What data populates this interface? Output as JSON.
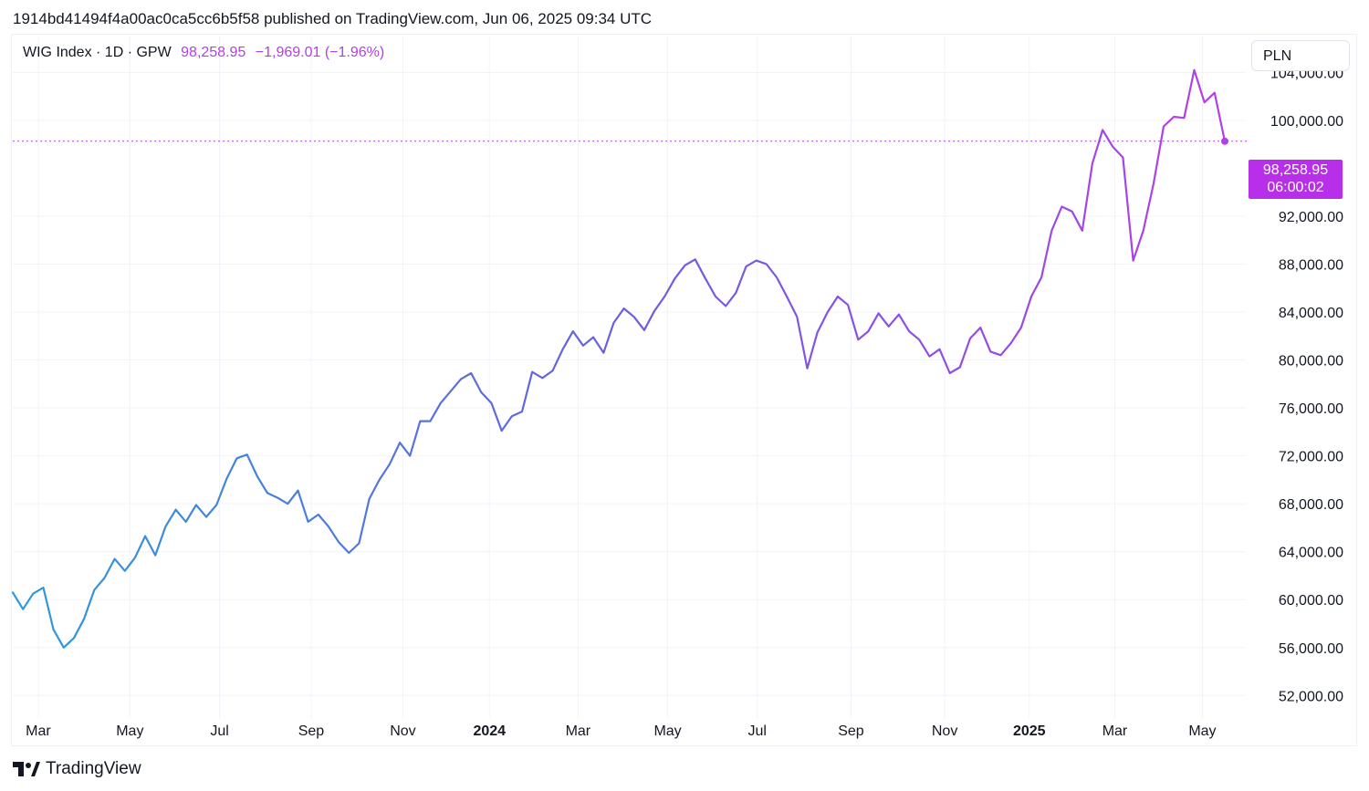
{
  "header": {
    "published_text": "1914bd41494f4a00ac0ca5cc6b5f58 published on TradingView.com, Jun 06, 2025 09:34 UTC"
  },
  "legend": {
    "symbol": "WIG Index · 1D · GPW",
    "last": "98,258.95",
    "change": "−1,969.01 (−1.96%)"
  },
  "currency_button": "PLN",
  "price_tag": {
    "price": "98,258.95",
    "countdown": "06:00:02",
    "color": "#b72fe8"
  },
  "footer": {
    "brand": "TradingView",
    "logo_icon": "tradingview-logo-icon"
  },
  "colors": {
    "line_start": "#2f9ad8",
    "line_mid": "#6a5fe0",
    "line_end": "#b43ee8",
    "grid": "#f0f3fa"
  },
  "chart_data": {
    "type": "line",
    "title": "",
    "xlabel": "",
    "ylabel": "",
    "ylim": [
      50500,
      107000
    ],
    "xlim": [
      0,
      119
    ],
    "x_ticks": [
      {
        "label": "Mar",
        "pos": 2.5,
        "bold": false
      },
      {
        "label": "May",
        "pos": 11.5,
        "bold": false
      },
      {
        "label": "Jul",
        "pos": 20.3,
        "bold": false
      },
      {
        "label": "Sep",
        "pos": 29.3,
        "bold": false
      },
      {
        "label": "Nov",
        "pos": 38.3,
        "bold": false
      },
      {
        "label": "2024",
        "pos": 46.8,
        "bold": true
      },
      {
        "label": "Mar",
        "pos": 55.5,
        "bold": false
      },
      {
        "label": "May",
        "pos": 64.3,
        "bold": false
      },
      {
        "label": "Jul",
        "pos": 73.1,
        "bold": false
      },
      {
        "label": "Sep",
        "pos": 82.3,
        "bold": false
      },
      {
        "label": "Nov",
        "pos": 91.5,
        "bold": false
      },
      {
        "label": "2025",
        "pos": 99.8,
        "bold": true
      },
      {
        "label": "Mar",
        "pos": 108.2,
        "bold": false
      },
      {
        "label": "May",
        "pos": 116.8,
        "bold": false
      }
    ],
    "y_ticks": [
      "52,000.00",
      "56,000.00",
      "60,000.00",
      "64,000.00",
      "68,000.00",
      "72,000.00",
      "76,000.00",
      "80,000.00",
      "84,000.00",
      "88,000.00",
      "92,000.00",
      "100,000.00",
      "104,000.00"
    ],
    "y_tick_values": [
      52000,
      56000,
      60000,
      64000,
      68000,
      72000,
      76000,
      80000,
      84000,
      88000,
      92000,
      100000,
      104000
    ],
    "series": [
      {
        "values": [
          [
            0,
            60600
          ],
          [
            1,
            59200
          ],
          [
            2,
            60500
          ],
          [
            3,
            61000
          ],
          [
            4,
            57500
          ],
          [
            5,
            56000
          ],
          [
            6,
            56800
          ],
          [
            7,
            58400
          ],
          [
            8,
            60800
          ],
          [
            9,
            61800
          ],
          [
            10,
            63400
          ],
          [
            11,
            62400
          ],
          [
            12,
            63500
          ],
          [
            13,
            65300
          ],
          [
            14,
            63700
          ],
          [
            15,
            66100
          ],
          [
            16,
            67500
          ],
          [
            17,
            66500
          ],
          [
            18,
            67900
          ],
          [
            19,
            66900
          ],
          [
            20,
            67900
          ],
          [
            21,
            70100
          ],
          [
            22,
            71800
          ],
          [
            23,
            72100
          ],
          [
            24,
            70300
          ],
          [
            25,
            68900
          ],
          [
            26,
            68500
          ],
          [
            27,
            68000
          ],
          [
            28,
            69100
          ],
          [
            29,
            66500
          ],
          [
            30,
            67100
          ],
          [
            31,
            66100
          ],
          [
            32,
            64800
          ],
          [
            33,
            63900
          ],
          [
            34,
            64700
          ],
          [
            35,
            68400
          ],
          [
            36,
            70000
          ],
          [
            37,
            71300
          ],
          [
            38,
            73100
          ],
          [
            39,
            72000
          ],
          [
            40,
            74900
          ],
          [
            41,
            74900
          ],
          [
            42,
            76400
          ],
          [
            43,
            77400
          ],
          [
            44,
            78400
          ],
          [
            45,
            78900
          ],
          [
            46,
            77300
          ],
          [
            47,
            76400
          ],
          [
            48,
            74100
          ],
          [
            49,
            75300
          ],
          [
            50,
            75700
          ],
          [
            51,
            79000
          ],
          [
            52,
            78500
          ],
          [
            53,
            79100
          ],
          [
            54,
            80900
          ],
          [
            55,
            82400
          ],
          [
            56,
            81200
          ],
          [
            57,
            81900
          ],
          [
            58,
            80600
          ],
          [
            59,
            83100
          ],
          [
            60,
            84300
          ],
          [
            61,
            83600
          ],
          [
            62,
            82500
          ],
          [
            63,
            84100
          ],
          [
            64,
            85300
          ],
          [
            65,
            86800
          ],
          [
            66,
            87900
          ],
          [
            67,
            88400
          ],
          [
            68,
            86800
          ],
          [
            69,
            85300
          ],
          [
            70,
            84500
          ],
          [
            71,
            85600
          ],
          [
            72,
            87800
          ],
          [
            73,
            88300
          ],
          [
            74,
            88000
          ],
          [
            75,
            86900
          ],
          [
            76,
            85300
          ],
          [
            77,
            83600
          ],
          [
            78,
            79300
          ],
          [
            79,
            82300
          ],
          [
            80,
            84000
          ],
          [
            81,
            85300
          ],
          [
            82,
            84600
          ],
          [
            83,
            81700
          ],
          [
            84,
            82400
          ],
          [
            85,
            83900
          ],
          [
            86,
            82800
          ],
          [
            87,
            83800
          ],
          [
            88,
            82400
          ],
          [
            89,
            81700
          ],
          [
            90,
            80300
          ],
          [
            91,
            80900
          ],
          [
            92,
            78900
          ],
          [
            93,
            79400
          ],
          [
            94,
            81800
          ],
          [
            95,
            82700
          ],
          [
            96,
            80700
          ],
          [
            97,
            80400
          ],
          [
            98,
            81400
          ],
          [
            99,
            82700
          ],
          [
            100,
            85300
          ],
          [
            101,
            86900
          ],
          [
            102,
            90800
          ],
          [
            103,
            92800
          ],
          [
            104,
            92400
          ],
          [
            105,
            90800
          ],
          [
            106,
            96400
          ],
          [
            107,
            99200
          ],
          [
            108,
            97800
          ],
          [
            109,
            96900
          ],
          [
            110,
            88300
          ],
          [
            111,
            90800
          ],
          [
            112,
            94700
          ],
          [
            113,
            99500
          ],
          [
            114,
            100300
          ],
          [
            115,
            100200
          ],
          [
            116,
            104200
          ],
          [
            117,
            101500
          ],
          [
            118,
            102300
          ],
          [
            119,
            98259
          ]
        ]
      }
    ],
    "last_value": 98259
  }
}
